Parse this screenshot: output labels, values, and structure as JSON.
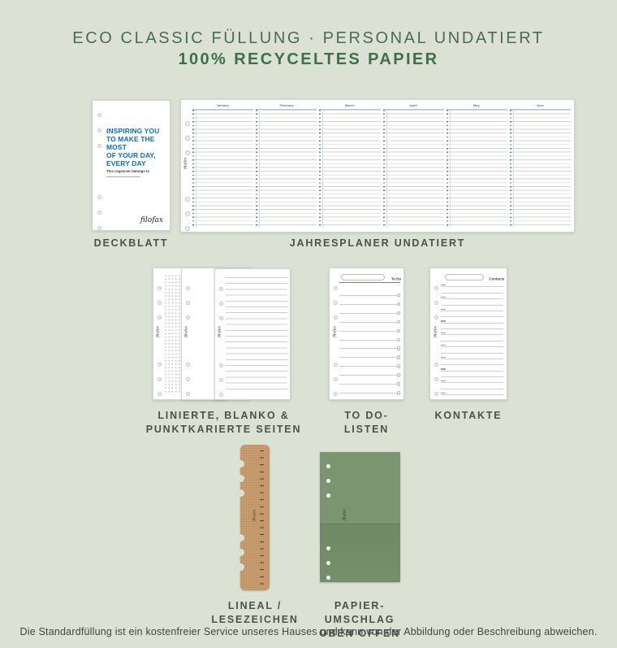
{
  "page": {
    "title": "ECO CLASSIC FÜLLUNG · PERSONAL UNDATIERT",
    "subtitle": "100% RECYCELTES PAPIER",
    "footer": "Die Standardfüllung ist ein kostenfreier Service unseres Hauses und kann von der Abbildung oder Beschreibung abweichen."
  },
  "colors": {
    "bg": "#dbe2d4",
    "title_green": "#4a6c52",
    "subtitle_green": "#3e7047",
    "label_gray": "#4b514b",
    "filofax_blue": "#0d6dc5",
    "planner_blue": "#4a79c2",
    "kraft": "#c79b6d",
    "envelope_green": "#73906a"
  },
  "deckblatt": {
    "label": "DECKBLATT",
    "heading_lines": [
      "INSPIRING YOU",
      "TO MAKE THE MOST",
      "OF YOUR DAY,",
      "EVERY DAY"
    ],
    "belongs_text": "This organiser belongs to",
    "brand": "filofax"
  },
  "jahresplaner": {
    "label": "JAHRESPLANER UNDATIERT",
    "months": [
      "January",
      "February",
      "March",
      "April",
      "May",
      "June"
    ],
    "brand": "filofax"
  },
  "seiten": {
    "label_lines": [
      "LINIERTE, BLANKO &",
      "PUNKTKARIERTE SEITEN"
    ],
    "brand": "filofax"
  },
  "todo": {
    "label": "TO DO-LISTEN",
    "header": "To Do",
    "brand": "filofax"
  },
  "kontakte": {
    "label": "KONTAKTE",
    "header": "Contacts",
    "brand": "filofax"
  },
  "lineal": {
    "label_lines": [
      "LINEAL /",
      "LESEZEICHEN"
    ],
    "brand": "filofax"
  },
  "umschlag": {
    "label_lines": [
      "PAPIER-UMSCHLAG",
      "OBEN OFFEN"
    ],
    "brand": "filofax"
  }
}
